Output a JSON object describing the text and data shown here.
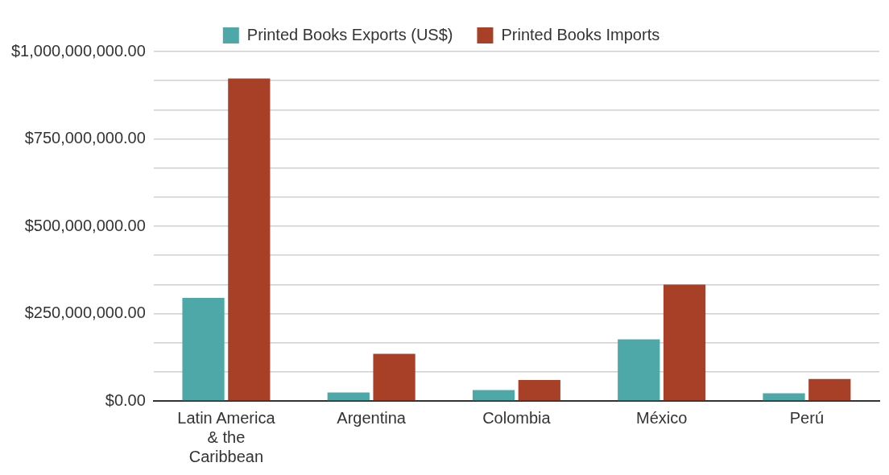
{
  "chart_data": {
    "type": "bar",
    "categories": [
      "Latin America & the Caribbean",
      "Argentina",
      "Colombia",
      "México",
      "Perú"
    ],
    "series": [
      {
        "name": "Printed Books Exports (US$)",
        "color": "#4fa8a8",
        "values": [
          295000000,
          24000000,
          31000000,
          176000000,
          22000000
        ]
      },
      {
        "name": "Printed Books Imports",
        "color": "#a83f27",
        "values": [
          923000000,
          135000000,
          60000000,
          333000000,
          63000000
        ]
      }
    ],
    "ylim": [
      0,
      1000000000
    ],
    "yticks": [
      {
        "value": 0,
        "label": "$0.00"
      },
      {
        "value": 83333333,
        "label": null
      },
      {
        "value": 166666667,
        "label": null
      },
      {
        "value": 250000000,
        "label": "$250,000,000.00"
      },
      {
        "value": 333333333,
        "label": null
      },
      {
        "value": 416666667,
        "label": null
      },
      {
        "value": 500000000,
        "label": "$500,000,000.00"
      },
      {
        "value": 583333333,
        "label": null
      },
      {
        "value": 666666667,
        "label": null
      },
      {
        "value": 750000000,
        "label": "$750,000,000.00"
      },
      {
        "value": 833333333,
        "label": null
      },
      {
        "value": 916666667,
        "label": null
      },
      {
        "value": 1000000000,
        "label": "$1,000,000,000.00"
      }
    ],
    "grid": "y",
    "legend": "top"
  }
}
